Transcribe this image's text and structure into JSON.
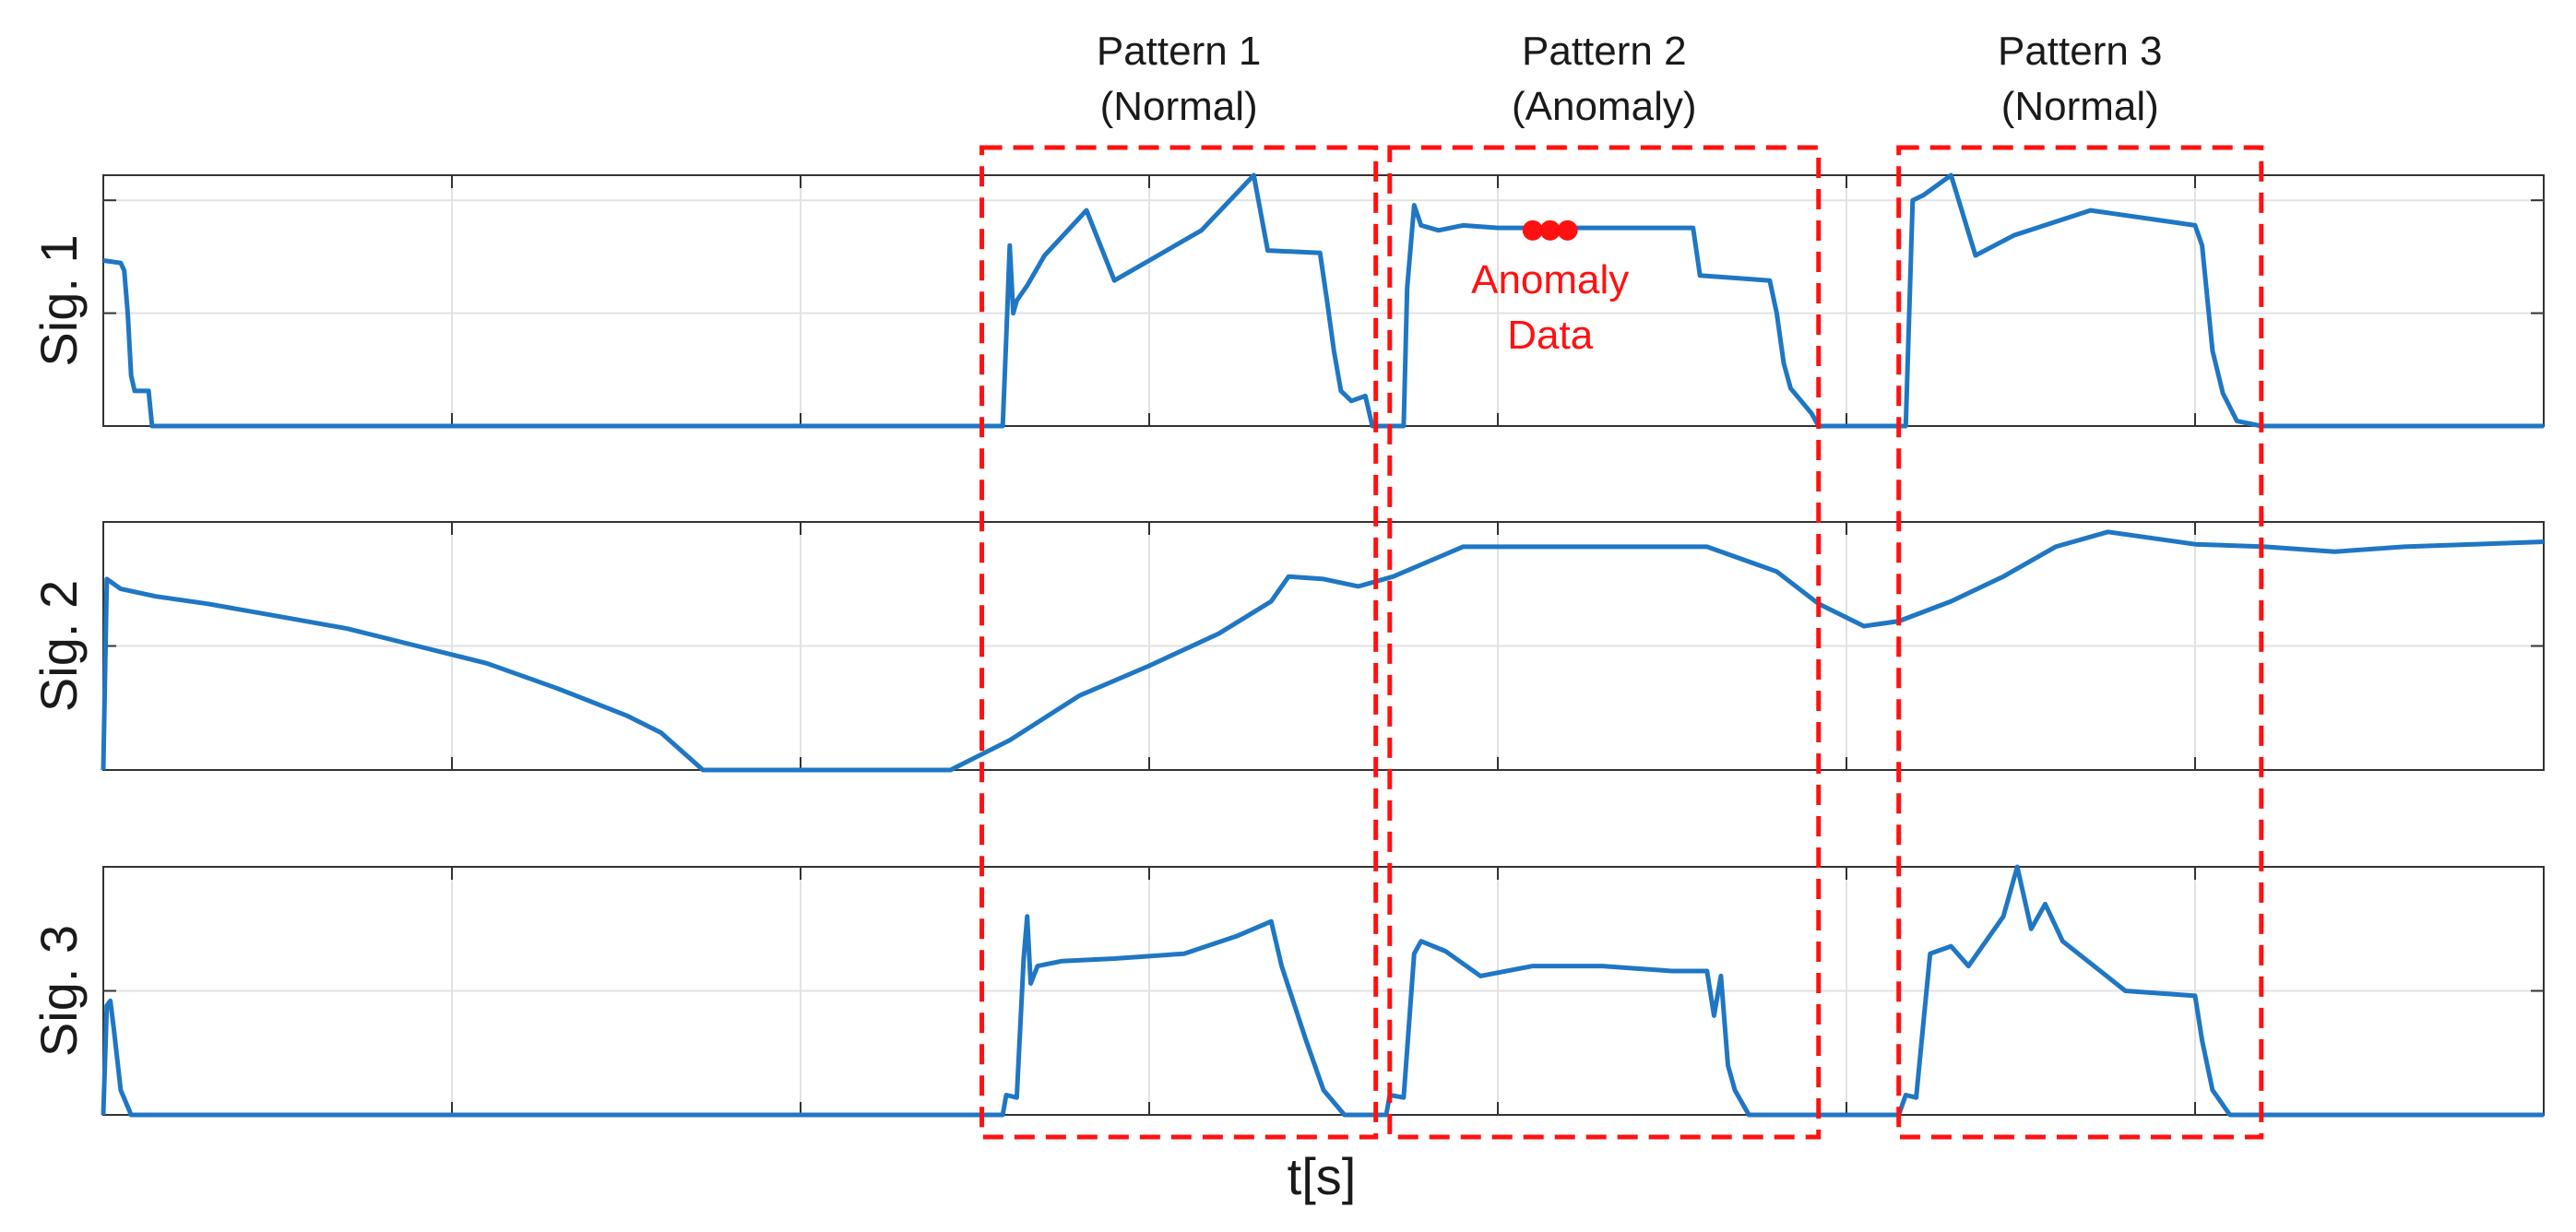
{
  "chart_data": {
    "type": "line",
    "title": "",
    "xlabel": "t[s]",
    "xlim": [
      0,
      700
    ],
    "colors": {
      "series": "#1f77c4",
      "highlight": "#ff1111",
      "frame": "#333333",
      "grid": "#e2e2e2"
    },
    "grid": true,
    "x_ticks": [
      100,
      200,
      300,
      400,
      500,
      600
    ],
    "patterns": [
      {
        "name": "Pattern 1",
        "label": "(Normal)",
        "x_start": 252,
        "x_end": 365
      },
      {
        "name": "Pattern 2",
        "label": "(Anomaly)",
        "x_start": 369,
        "x_end": 492
      },
      {
        "name": "Pattern 3",
        "label": "(Normal)",
        "x_start": 515,
        "x_end": 619
      }
    ],
    "annotation": {
      "text_line1": "Anomaly",
      "text_line2": "Data",
      "points": [
        [
          410,
          0.78
        ],
        [
          415,
          0.78
        ],
        [
          420,
          0.78
        ]
      ]
    },
    "series": [
      {
        "name": "Sig. 1",
        "ylim": [
          0,
          1
        ],
        "y_ticks": [
          0.45,
          0.9
        ],
        "points": [
          [
            0,
            0.66
          ],
          [
            5,
            0.65
          ],
          [
            6,
            0.62
          ],
          [
            7,
            0.45
          ],
          [
            8,
            0.2
          ],
          [
            9,
            0.14
          ],
          [
            13,
            0.14
          ],
          [
            14,
            0
          ],
          [
            252,
            0
          ],
          [
            258,
            0
          ],
          [
            259,
            0.35
          ],
          [
            260,
            0.72
          ],
          [
            261,
            0.45
          ],
          [
            262,
            0.5
          ],
          [
            265,
            0.56
          ],
          [
            270,
            0.68
          ],
          [
            282,
            0.86
          ],
          [
            290,
            0.58
          ],
          [
            300,
            0.66
          ],
          [
            315,
            0.78
          ],
          [
            330,
            1.0
          ],
          [
            334,
            0.7
          ],
          [
            349,
            0.69
          ],
          [
            351,
            0.5
          ],
          [
            353,
            0.3
          ],
          [
            355,
            0.14
          ],
          [
            358,
            0.1
          ],
          [
            362,
            0.12
          ],
          [
            364,
            0
          ],
          [
            373,
            0
          ],
          [
            374,
            0.55
          ],
          [
            376,
            0.88
          ],
          [
            378,
            0.8
          ],
          [
            383,
            0.78
          ],
          [
            390,
            0.8
          ],
          [
            400,
            0.79
          ],
          [
            420,
            0.79
          ],
          [
            440,
            0.79
          ],
          [
            456,
            0.79
          ],
          [
            458,
            0.6
          ],
          [
            478,
            0.58
          ],
          [
            480,
            0.45
          ],
          [
            482,
            0.25
          ],
          [
            484,
            0.15
          ],
          [
            490,
            0.05
          ],
          [
            492,
            0
          ],
          [
            505,
            0
          ],
          [
            517,
            0
          ],
          [
            519,
            0.9
          ],
          [
            522,
            0.92
          ],
          [
            530,
            1.0
          ],
          [
            537,
            0.68
          ],
          [
            548,
            0.76
          ],
          [
            570,
            0.86
          ],
          [
            600,
            0.8
          ],
          [
            602,
            0.72
          ],
          [
            605,
            0.3
          ],
          [
            608,
            0.13
          ],
          [
            612,
            0.02
          ],
          [
            619,
            0
          ],
          [
            700,
            0
          ]
        ]
      },
      {
        "name": "Sig. 2",
        "ylim": [
          0,
          1
        ],
        "y_ticks": [
          0.5
        ],
        "points": [
          [
            0,
            0
          ],
          [
            1,
            0.77
          ],
          [
            5,
            0.73
          ],
          [
            15,
            0.7
          ],
          [
            30,
            0.67
          ],
          [
            50,
            0.62
          ],
          [
            70,
            0.57
          ],
          [
            90,
            0.5
          ],
          [
            110,
            0.43
          ],
          [
            130,
            0.33
          ],
          [
            150,
            0.22
          ],
          [
            160,
            0.15
          ],
          [
            172,
            0
          ],
          [
            243,
            0
          ],
          [
            260,
            0.12
          ],
          [
            280,
            0.3
          ],
          [
            300,
            0.42
          ],
          [
            320,
            0.55
          ],
          [
            335,
            0.68
          ],
          [
            340,
            0.78
          ],
          [
            350,
            0.77
          ],
          [
            360,
            0.74
          ],
          [
            370,
            0.78
          ],
          [
            385,
            0.87
          ],
          [
            390,
            0.9
          ],
          [
            410,
            0.9
          ],
          [
            460,
            0.9
          ],
          [
            480,
            0.8
          ],
          [
            492,
            0.67
          ],
          [
            505,
            0.58
          ],
          [
            515,
            0.6
          ],
          [
            530,
            0.68
          ],
          [
            545,
            0.78
          ],
          [
            560,
            0.9
          ],
          [
            575,
            0.96
          ],
          [
            590,
            0.93
          ],
          [
            600,
            0.91
          ],
          [
            620,
            0.9
          ],
          [
            640,
            0.88
          ],
          [
            660,
            0.9
          ],
          [
            680,
            0.91
          ],
          [
            700,
            0.92
          ]
        ]
      },
      {
        "name": "Sig. 3",
        "ylim": [
          0,
          1
        ],
        "y_ticks": [
          0.5
        ],
        "points": [
          [
            0,
            0
          ],
          [
            1,
            0.44
          ],
          [
            2,
            0.46
          ],
          [
            3,
            0.35
          ],
          [
            5,
            0.1
          ],
          [
            8,
            0
          ],
          [
            252,
            0
          ],
          [
            258,
            0
          ],
          [
            259,
            0.08
          ],
          [
            262,
            0.07
          ],
          [
            264,
            0.63
          ],
          [
            265,
            0.8
          ],
          [
            266,
            0.53
          ],
          [
            268,
            0.6
          ],
          [
            275,
            0.62
          ],
          [
            290,
            0.63
          ],
          [
            310,
            0.65
          ],
          [
            325,
            0.72
          ],
          [
            335,
            0.78
          ],
          [
            338,
            0.6
          ],
          [
            345,
            0.3
          ],
          [
            350,
            0.1
          ],
          [
            356,
            0
          ],
          [
            365,
            0
          ],
          [
            368,
            0
          ],
          [
            369,
            0.08
          ],
          [
            373,
            0.07
          ],
          [
            376,
            0.65
          ],
          [
            378,
            0.7
          ],
          [
            385,
            0.66
          ],
          [
            395,
            0.56
          ],
          [
            410,
            0.6
          ],
          [
            430,
            0.6
          ],
          [
            450,
            0.58
          ],
          [
            460,
            0.58
          ],
          [
            462,
            0.4
          ],
          [
            464,
            0.56
          ],
          [
            466,
            0.2
          ],
          [
            468,
            0.1
          ],
          [
            472,
            0
          ],
          [
            492,
            0
          ],
          [
            515,
            0
          ],
          [
            517,
            0.08
          ],
          [
            520,
            0.07
          ],
          [
            524,
            0.65
          ],
          [
            530,
            0.68
          ],
          [
            535,
            0.6
          ],
          [
            545,
            0.8
          ],
          [
            549,
            1.0
          ],
          [
            553,
            0.75
          ],
          [
            557,
            0.85
          ],
          [
            562,
            0.7
          ],
          [
            580,
            0.5
          ],
          [
            600,
            0.48
          ],
          [
            602,
            0.3
          ],
          [
            605,
            0.1
          ],
          [
            610,
            0
          ],
          [
            700,
            0
          ]
        ]
      }
    ]
  }
}
